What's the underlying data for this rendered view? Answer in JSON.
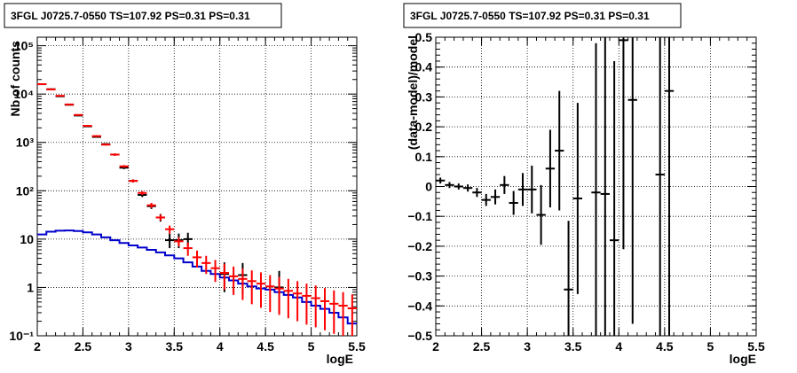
{
  "chart_data": [
    {
      "type": "line",
      "title": "3FGL J0725.7-0550 TS=107.92 PS=0.31 PS=0.31",
      "xlabel": "logE",
      "ylabel": "Nb of counts",
      "xlim": [
        2,
        5.5
      ],
      "ylim": [
        0.1,
        150000
      ],
      "yscale": "log",
      "grid": true,
      "x_ticks": [
        2,
        2.5,
        3,
        3.5,
        4,
        4.5,
        5,
        5.5
      ],
      "x_tick_labels": [
        "2",
        "2.5",
        "3",
        "3.5",
        "4",
        "4.5",
        "5",
        "5.5"
      ],
      "y_ticks": [
        0.1,
        1,
        10,
        100,
        1000,
        10000,
        100000
      ],
      "y_tick_labels": [
        "10⁻¹",
        "1",
        "10",
        "10²",
        "10³",
        "10⁴",
        "10⁵"
      ],
      "bin_edges": [
        2.0,
        2.1,
        2.2,
        2.3,
        2.4,
        2.5,
        2.6,
        2.7,
        2.8,
        2.9,
        3.0,
        3.1,
        3.2,
        3.3,
        3.4,
        3.5,
        3.6,
        3.7,
        3.8,
        3.9,
        4.0,
        4.1,
        4.2,
        4.3,
        4.4,
        4.5,
        4.6,
        4.7,
        4.8,
        4.9,
        5.0,
        5.1,
        5.2,
        5.3,
        5.4,
        5.5
      ],
      "series": [
        {
          "role": "model",
          "color": "#ff0000",
          "x": [
            2.05,
            2.15,
            2.25,
            2.35,
            2.45,
            2.55,
            2.65,
            2.75,
            2.85,
            2.95,
            3.05,
            3.15,
            3.25,
            3.35,
            3.45,
            3.55,
            3.65,
            3.75,
            3.85,
            3.95,
            4.05,
            4.15,
            4.25,
            4.35,
            4.45,
            4.55,
            4.65,
            4.75,
            4.85,
            4.95,
            5.05,
            5.15,
            5.25,
            5.35,
            5.45
          ],
          "y": [
            16000,
            12500,
            9200,
            6100,
            3700,
            2200,
            1350,
            900,
            560,
            320,
            160,
            90,
            50,
            28,
            16,
            9,
            6.5,
            4.2,
            3.2,
            2.5,
            2.0,
            1.7,
            1.5,
            1.35,
            1.2,
            1.05,
            0.95,
            0.85,
            0.75,
            0.67,
            0.6,
            0.52,
            0.46,
            0.42,
            0.37
          ],
          "err_lo": [
            15800,
            12300,
            9000,
            5950,
            3580,
            2120,
            1290,
            860,
            530,
            300,
            148,
            82,
            44,
            24,
            13,
            7,
            4.5,
            2.6,
            1.9,
            1.3,
            0.9,
            0.7,
            0.55,
            0.45,
            0.38,
            0.31,
            0.27,
            0.23,
            0.2,
            0.17,
            0.15,
            0.13,
            0.11,
            0.1,
            0.09
          ],
          "err_hi": [
            16200,
            12700,
            9400,
            6250,
            3820,
            2280,
            1410,
            940,
            590,
            340,
            172,
            98,
            56,
            32,
            19,
            11,
            8.5,
            5.8,
            4.5,
            3.7,
            3.1,
            2.7,
            2.45,
            2.25,
            2.05,
            1.8,
            1.65,
            1.5,
            1.35,
            1.2,
            1.1,
            0.97,
            0.87,
            0.8,
            0.72
          ]
        },
        {
          "role": "data",
          "color": "#000000",
          "x": [
            2.05,
            2.15,
            2.25,
            2.35,
            2.45,
            2.55,
            2.65,
            2.75,
            2.85,
            2.95,
            3.05,
            3.15,
            3.25,
            3.35,
            3.45,
            3.55,
            3.65,
            4.05,
            4.25,
            4.65
          ],
          "y": [
            16000,
            12600,
            9000,
            6000,
            3600,
            2150,
            1300,
            920,
            560,
            300,
            160,
            82,
            48,
            28,
            9.5,
            9.5,
            10,
            1.9,
            1.8,
            1.0
          ],
          "err_lo": [
            15700,
            12300,
            8800,
            5850,
            3500,
            2080,
            1250,
            880,
            530,
            280,
            148,
            74,
            42,
            23,
            6.5,
            6.5,
            7,
            0.8,
            0.7,
            0.3
          ],
          "err_hi": [
            16300,
            12900,
            9200,
            6150,
            3700,
            2220,
            1350,
            960,
            590,
            320,
            172,
            90,
            54,
            33,
            13,
            13,
            13.5,
            3.3,
            3.2,
            2.2
          ]
        },
        {
          "role": "background",
          "color": "#0000cc",
          "steps": [
            12.5,
            14.2,
            14.9,
            15.1,
            14.7,
            13.8,
            12.5,
            10.9,
            9.5,
            8.3,
            7.4,
            6.7,
            6.0,
            5.3,
            4.6,
            4.0,
            3.3,
            2.7,
            2.2,
            1.9,
            1.6,
            1.4,
            1.2,
            1.05,
            0.95,
            0.9,
            0.8,
            0.7,
            0.62,
            0.5,
            0.42,
            0.36,
            0.3,
            0.24,
            0.18
          ]
        }
      ]
    },
    {
      "type": "scatter",
      "title": "3FGL J0725.7-0550 TS=107.92 PS=0.31 PS=0.31",
      "xlabel": "logE",
      "ylabel": "(data-model)/model",
      "xlim": [
        2,
        5.5
      ],
      "ylim": [
        -0.5,
        0.5
      ],
      "grid": true,
      "x_ticks": [
        2,
        2.5,
        3,
        3.5,
        4,
        4.5,
        5,
        5.5
      ],
      "x_tick_labels": [
        "2",
        "2.5",
        "3",
        "3.5",
        "4",
        "4.5",
        "5",
        "5.5"
      ],
      "y_ticks": [
        -0.5,
        -0.4,
        -0.3,
        -0.2,
        -0.1,
        0,
        0.1,
        0.2,
        0.3,
        0.4,
        0.5
      ],
      "y_tick_labels": [
        "−0.5",
        "−0.4",
        "−0.3",
        "−0.2",
        "−0.1",
        "0",
        "0.1",
        "0.2",
        "0.3",
        "0.4",
        "0.5"
      ],
      "series": [
        {
          "role": "residual",
          "color": "#000000",
          "x": [
            2.05,
            2.15,
            2.25,
            2.35,
            2.45,
            2.55,
            2.65,
            2.75,
            2.85,
            2.95,
            3.05,
            3.15,
            3.25,
            3.35,
            3.45,
            3.55,
            3.75,
            3.85,
            3.95,
            4.05,
            4.15,
            4.45,
            4.55
          ],
          "y": [
            0.02,
            0.005,
            0.0,
            -0.005,
            -0.02,
            -0.045,
            -0.035,
            0.005,
            -0.055,
            -0.01,
            -0.01,
            -0.095,
            0.06,
            0.12,
            -0.345,
            -0.04,
            -0.02,
            -0.025,
            -0.18,
            0.49,
            0.29,
            0.04,
            0.32
          ],
          "err": [
            0.01,
            0.01,
            0.01,
            0.012,
            0.015,
            0.02,
            0.025,
            0.03,
            0.04,
            0.055,
            0.08,
            0.1,
            0.13,
            0.2,
            0.23,
            0.32,
            0.5,
            0.55,
            0.6,
            0.7,
            0.75,
            0.9,
            0.95
          ]
        }
      ]
    }
  ]
}
